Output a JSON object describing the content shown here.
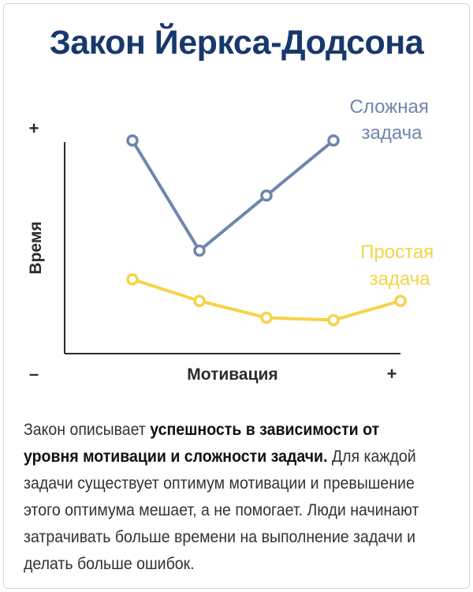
{
  "title": "Закон Йеркса-Додсона",
  "chart_data": {
    "type": "line",
    "xlabel": "Мотивация",
    "ylabel": "Время",
    "x_min_label": "–",
    "x_max_label": "+",
    "y_max_label": "+",
    "x": [
      1,
      2,
      3,
      4,
      5
    ],
    "ylim": [
      0,
      100
    ],
    "grid": false,
    "series": [
      {
        "name": "Сложная задача",
        "label_lines": [
          "Сложная",
          "задача"
        ],
        "color": "#6f86ad",
        "values": [
          89,
          43,
          66,
          89,
          null
        ]
      },
      {
        "name": "Простая задача",
        "label_lines": [
          "Простая",
          "задача"
        ],
        "color": "#f5d348",
        "values": [
          31,
          22,
          15,
          14,
          22
        ]
      }
    ]
  },
  "description": {
    "part1": "Закон описывает ",
    "bold": "успешность в зависимости от уровня мотивации и сложности задачи.",
    "part2": " Для каждой задачи существует оптимум мотивации и превышение этого оптимума мешает, а не помогает. Люди начинают затрачивать больше времени на выполнение задачи и делать больше ошибок."
  }
}
